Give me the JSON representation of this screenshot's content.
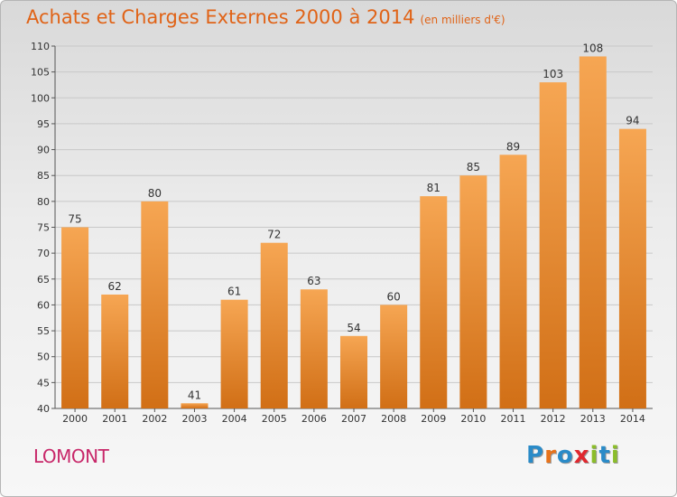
{
  "title": "Achats et Charges Externes 2000 à 2014",
  "subtitle": "(en milliers d'€)",
  "commune": "LOMONT",
  "logo": {
    "text": "Proxiti",
    "letters": [
      {
        "ch": "P",
        "color": "#2a8bc8"
      },
      {
        "ch": "r",
        "color": "#e8731b"
      },
      {
        "ch": "o",
        "color": "#2a8bc8"
      },
      {
        "ch": "x",
        "color": "#e0282f"
      },
      {
        "ch": "i",
        "color": "#8bbd2a"
      },
      {
        "ch": "t",
        "color": "#2a8bc8"
      },
      {
        "ch": "i",
        "color": "#8bbd2a"
      }
    ]
  },
  "colors": {
    "title": "#e06317",
    "commune": "#c8286a",
    "bar_top": "#f6a653",
    "bar_bottom": "#d16f16",
    "grid": "#c8c8c8"
  },
  "chart_data": {
    "type": "bar",
    "title": "Achats et Charges Externes 2000 à 2014",
    "subtitle": "(en milliers d'€)",
    "categories": [
      "2000",
      "2001",
      "2002",
      "2003",
      "2004",
      "2005",
      "2006",
      "2007",
      "2008",
      "2009",
      "2010",
      "2011",
      "2012",
      "2013",
      "2014"
    ],
    "values": [
      75,
      62,
      80,
      41,
      61,
      72,
      63,
      54,
      60,
      81,
      85,
      89,
      103,
      108,
      94
    ],
    "ylim": [
      40,
      110
    ],
    "yticks": [
      40,
      45,
      50,
      55,
      60,
      65,
      70,
      75,
      80,
      85,
      90,
      95,
      100,
      105,
      110
    ],
    "grid": true,
    "data_labels": true
  }
}
